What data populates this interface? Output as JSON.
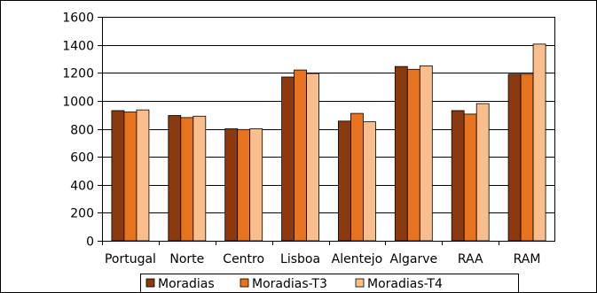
{
  "chart_data": {
    "type": "bar",
    "title": "",
    "xlabel": "",
    "ylabel": "",
    "categories": [
      "Portugal",
      "Norte",
      "Centro",
      "Lisboa",
      "Alentejo",
      "Algarve",
      "RAA",
      "RAM"
    ],
    "series": [
      {
        "name": "Moradias",
        "color": "#8B3A0F",
        "values": [
          930,
          895,
          800,
          1170,
          855,
          1245,
          930,
          1190
        ]
      },
      {
        "name": "Moradias-T3",
        "color": "#E8731E",
        "values": [
          920,
          880,
          795,
          1220,
          910,
          1225,
          905,
          1190
        ]
      },
      {
        "name": "Moradias-T4",
        "color": "#F9BE8C",
        "values": [
          935,
          890,
          800,
          1195,
          850,
          1250,
          980,
          1405
        ]
      }
    ],
    "y_ticks": [
      0,
      200,
      400,
      600,
      800,
      1000,
      1200,
      1400,
      1600
    ],
    "ylim": [
      0,
      1600
    ],
    "grid": true,
    "legend_position": "bottom"
  }
}
